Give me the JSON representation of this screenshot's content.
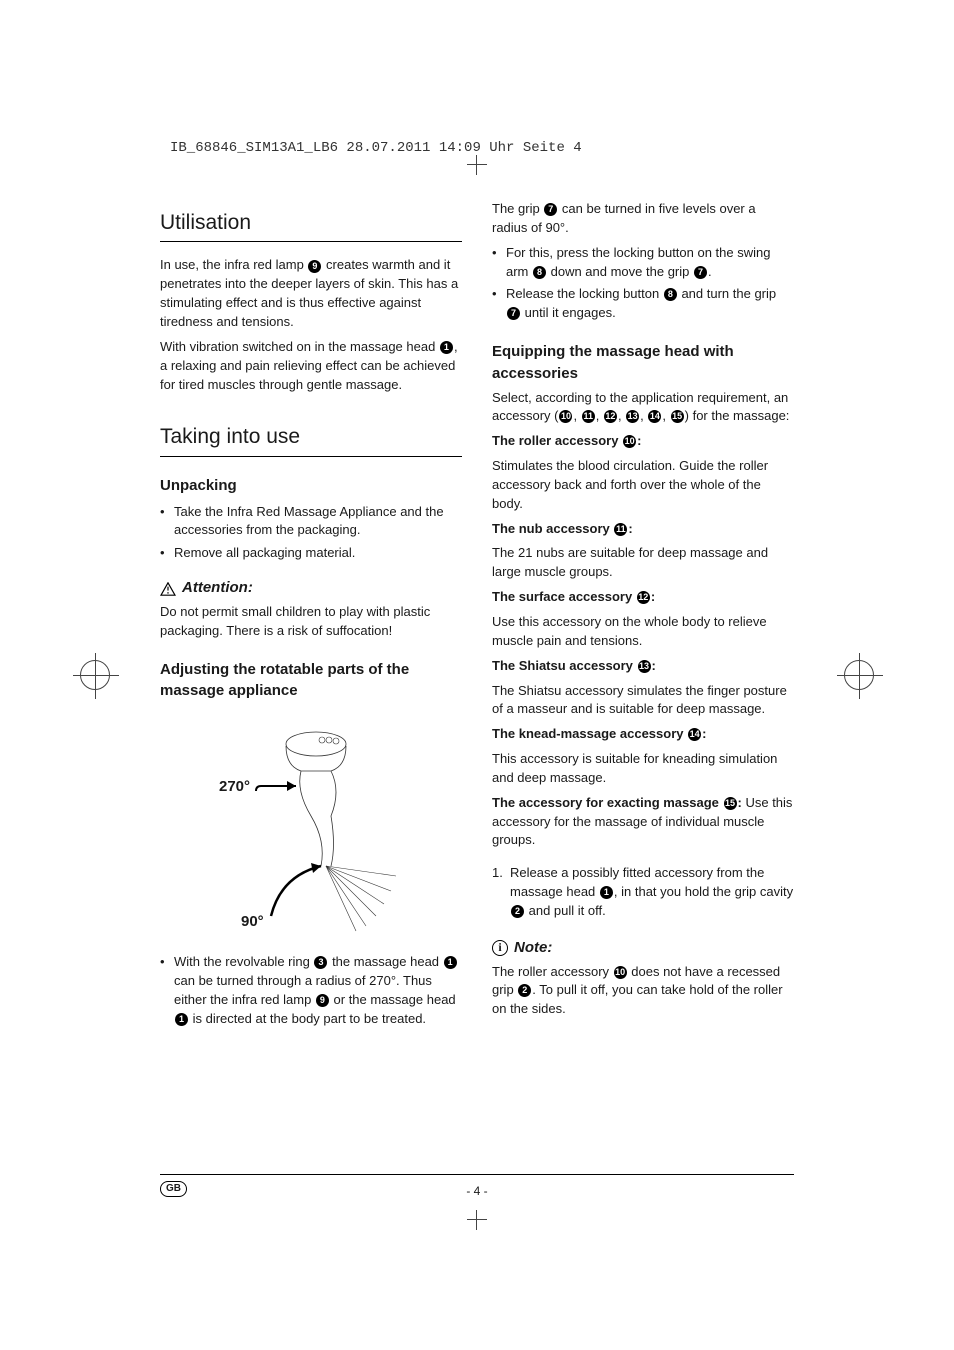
{
  "running_header": "IB_68846_SIM13A1_LB6  28.07.2011  14:09 Uhr  Seite 4",
  "left": {
    "h1": "Utilisation",
    "p1a": "In use, the infra red lamp ",
    "p1_num": "9",
    "p1b": " creates warmth and it penetrates into the deeper layers of skin. This has a stimulating effect and is thus effective against tiredness and tensions.",
    "p2a": "With vibration switched on in the massage head ",
    "p2_num": "1",
    "p2b": ", a relaxing and pain relieving effect can be achieved for tired muscles through gentle massage.",
    "h2": "Taking into use",
    "sub_unpack": "Unpacking",
    "unpack_b1": "Take the Infra Red Massage Appliance and the accessories from the packaging.",
    "unpack_b2": "Remove all packaging material.",
    "attn_label": "Attention:",
    "attn_text": "Do not permit small children to play with plastic packaging. There is a risk of suffocation!",
    "sub_adjust": "Adjusting the rotatable parts of the massage appliance",
    "angle_270": "270°",
    "angle_90": "90°",
    "rev_b1a": "With the revolvable ring ",
    "rev_b1_num1": "3",
    "rev_b1b": " the massage head ",
    "rev_b1_num2": "1",
    "rev_b1c": " can be turned through a radius of 270°. Thus either the infra red lamp ",
    "rev_b1_num3": "9",
    "rev_b1d": " or the massage head ",
    "rev_b1_num4": "1",
    "rev_b1e": " is directed at the body part to be treated."
  },
  "right": {
    "p1a": "The grip ",
    "p1_num": "7",
    "p1b": " can be turned in five levels over a radius of 90°.",
    "b1a": "For this, press the locking button on the swing arm ",
    "b1_num1": "8",
    "b1b": " down and move the grip ",
    "b1_num2": "7",
    "b1c": ".",
    "b2a": "Release the locking button ",
    "b2_num1": "8",
    "b2b": " and turn the grip ",
    "b2_num2": "7",
    "b2c": " until it engages.",
    "h3_equip": "Equipping the massage head with accessories",
    "equip_p_a": "Select, according to the application requirement, an accessory (",
    "equip_nums": [
      "10",
      "11",
      "12",
      "13",
      "14",
      "15"
    ],
    "equip_p_b": ") for the massage:",
    "acc": [
      {
        "label_a": "The roller accessory ",
        "num": "10",
        "label_b": ":",
        "text": "Stimulates the blood circulation. Guide the roller accessory back and forth over the whole of the body."
      },
      {
        "label_a": "The nub accessory ",
        "num": "11",
        "label_b": ":",
        "text": "The 21 nubs are suitable for deep massage and large muscle groups."
      },
      {
        "label_a": "The surface accessory ",
        "num": "12",
        "label_b": ":",
        "text": "Use this accessory on the whole body to relieve muscle pain and tensions."
      },
      {
        "label_a": "The Shiatsu accessory ",
        "num": "13",
        "label_b": ":",
        "text": "The Shiatsu accessory simulates the finger posture of a masseur and is suitable for deep massage."
      },
      {
        "label_a": "The knead-massage accessory ",
        "num": "14",
        "label_b": ":",
        "text": "This accessory is suitable for kneading simulation and deep massage."
      },
      {
        "label_a": "The accessory for exacting massage ",
        "num": "15",
        "label_b": ": ",
        "text": "Use this accessory for the massage of individual muscle groups.",
        "inline": true
      }
    ],
    "ol1a": "Release a possibly fitted accessory from the massage head ",
    "ol1_num1": "1",
    "ol1b": ", in that you hold the grip cavity ",
    "ol1_num2": "2",
    "ol1c": " and pull it off.",
    "note_label": "Note:",
    "note_a": "The roller accessory ",
    "note_num1": "10",
    "note_b": " does not have a recessed grip ",
    "note_num2": "2",
    "note_c": ". To pull it off, you can take hold of the roller on the sides."
  },
  "footer": {
    "lang": "GB",
    "page": "- 4 -"
  }
}
